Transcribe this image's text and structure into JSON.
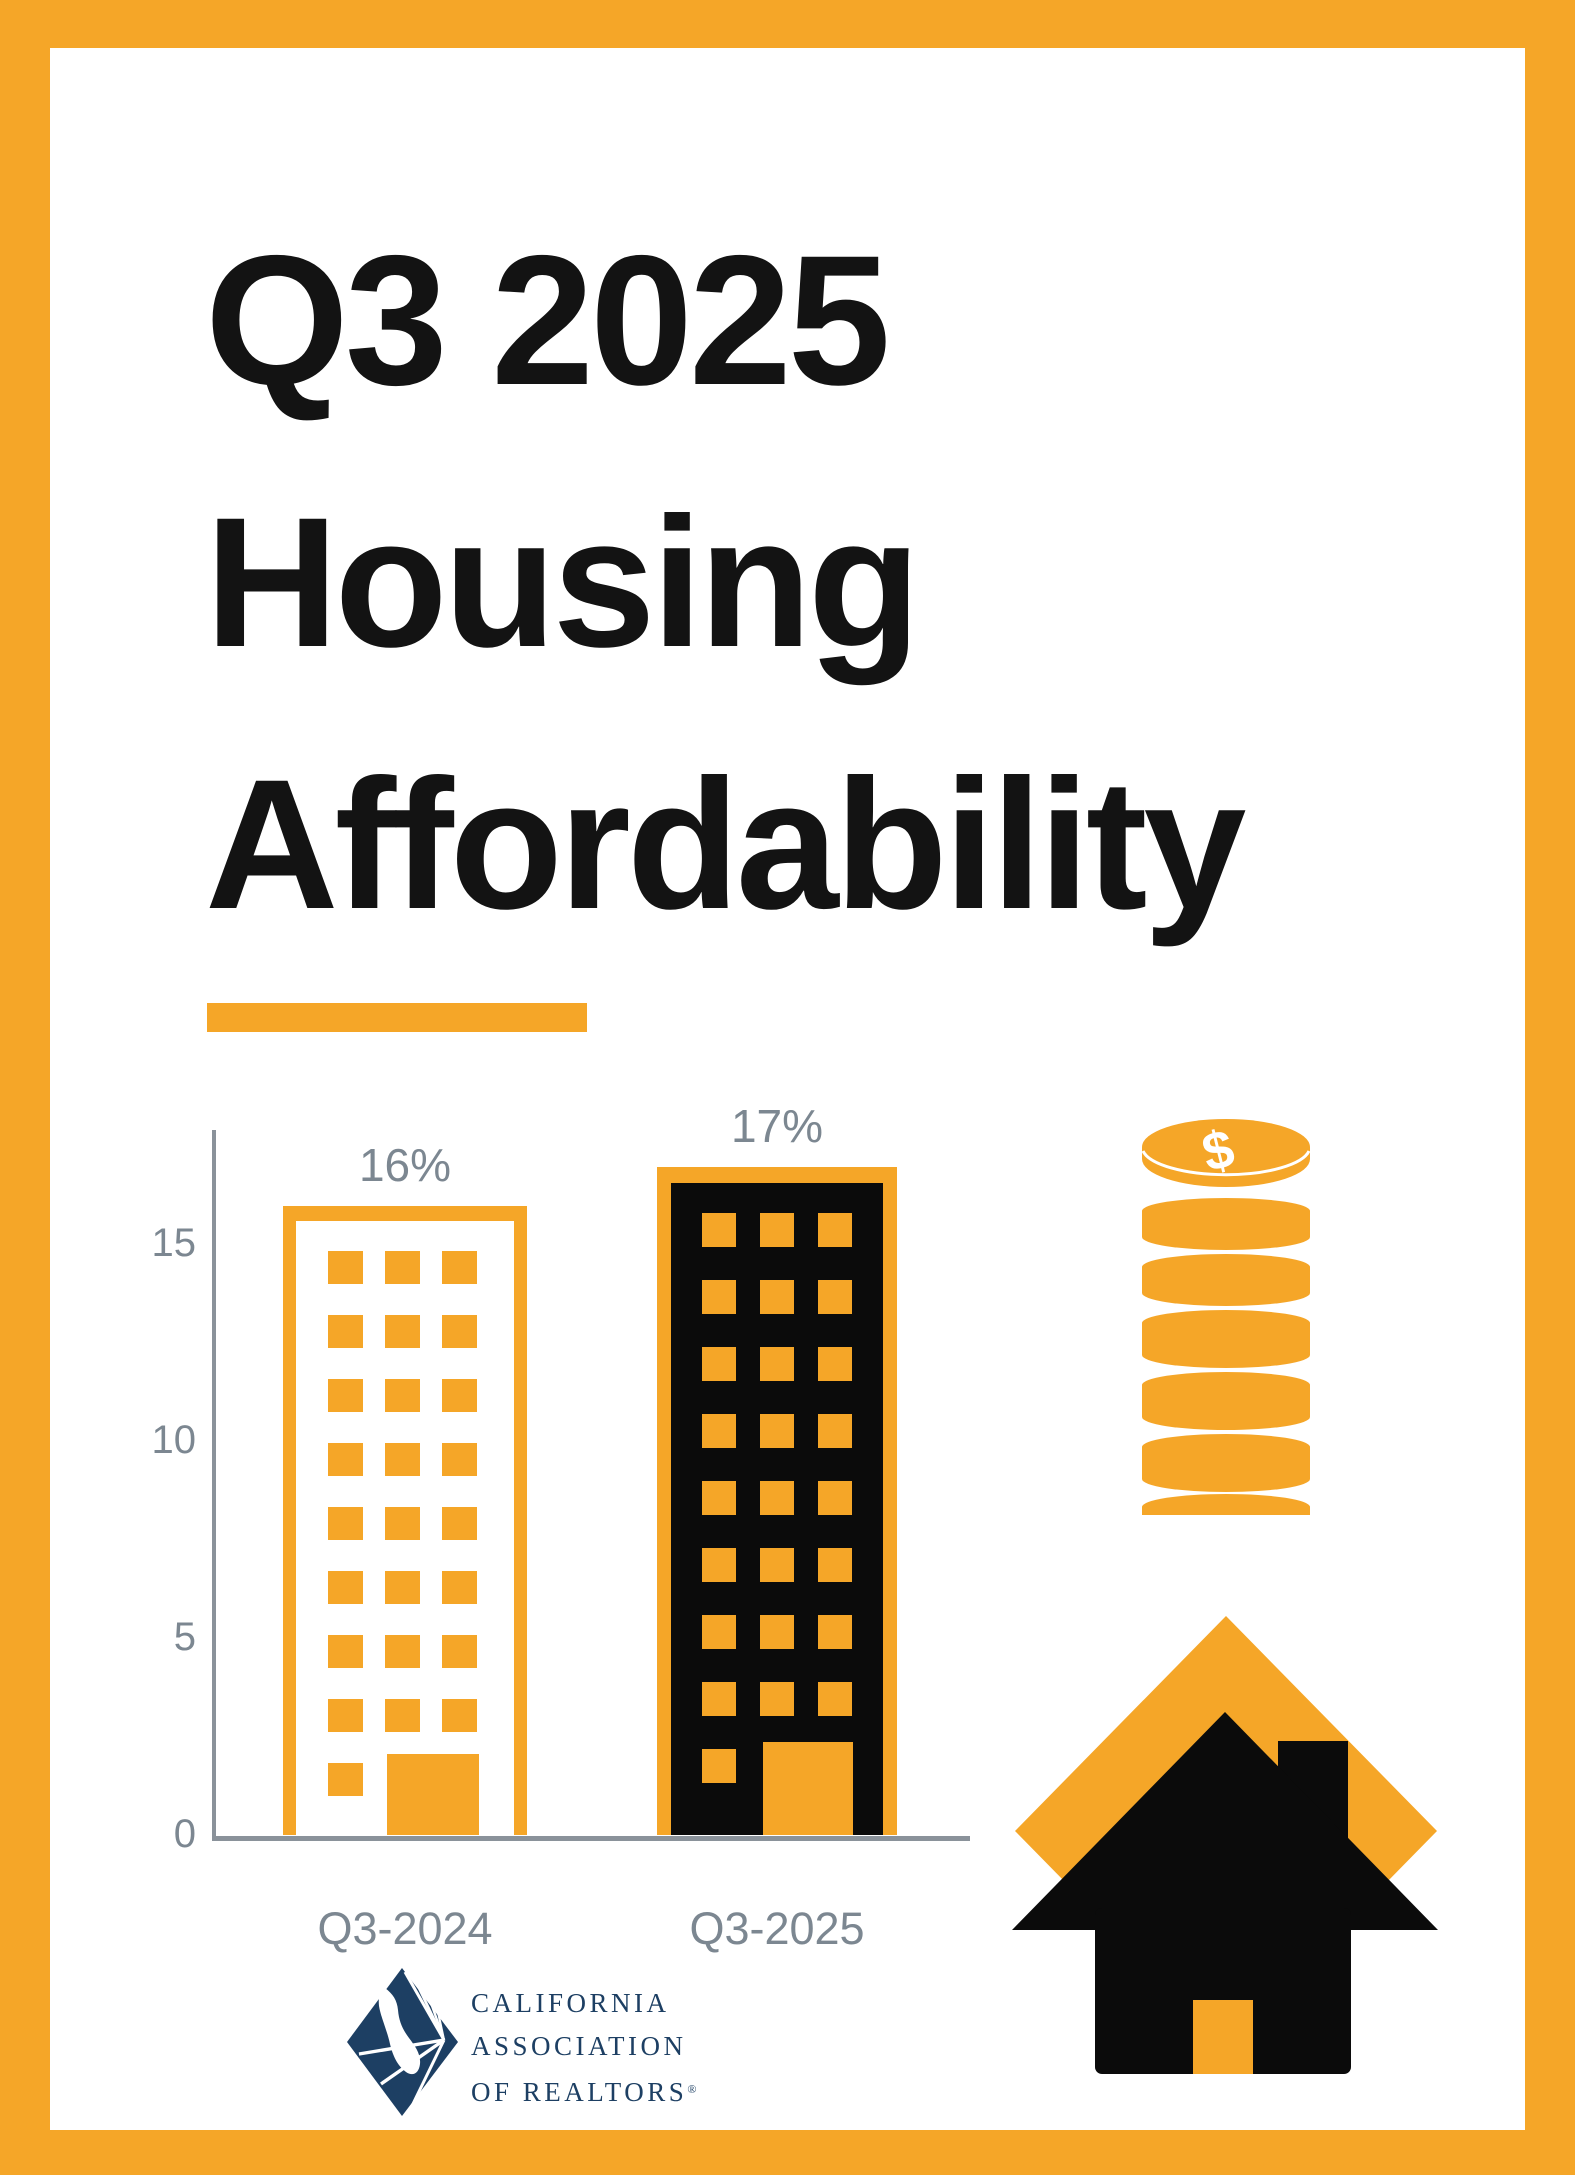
{
  "page": {
    "title_lines": [
      "Q3 2025",
      "Housing",
      "Affordability"
    ],
    "accent_color": "#F5A628",
    "title_color": "#131313"
  },
  "chart_data": {
    "type": "bar",
    "title": "Q3 2025 Housing Affordability",
    "categories": [
      "Q3-2024",
      "Q3-2025"
    ],
    "values": [
      16,
      17
    ],
    "value_labels": [
      "16%",
      "17%"
    ],
    "yticks": [
      "15",
      "10",
      "5",
      "0"
    ],
    "ylim": [
      0,
      18
    ],
    "xlabel": "",
    "ylabel": "",
    "grid": false,
    "legend": false,
    "bar_style": "building-pictogram",
    "colors": {
      "bar_q3_2024_fill": "#FFFFFF",
      "bar_q3_2025_fill": "#0B0B0B",
      "bar_outline_and_windows": "#F5A628",
      "axis_line": "#8A929A",
      "axis_text": "#7C8791"
    }
  },
  "icons": {
    "coin_stack": "coin-stack-icon",
    "house": "house-icon",
    "dollar_glyph": "$",
    "coin_color": "#F5A628",
    "house_roof_color": "#0B0B0B",
    "house_diamond_color": "#F5A628"
  },
  "logo": {
    "line1": "CALIFORNIA",
    "line2": "ASSOCIATION",
    "line3": "OF REALTORS",
    "registered": "®",
    "color": "#1D3F63"
  }
}
